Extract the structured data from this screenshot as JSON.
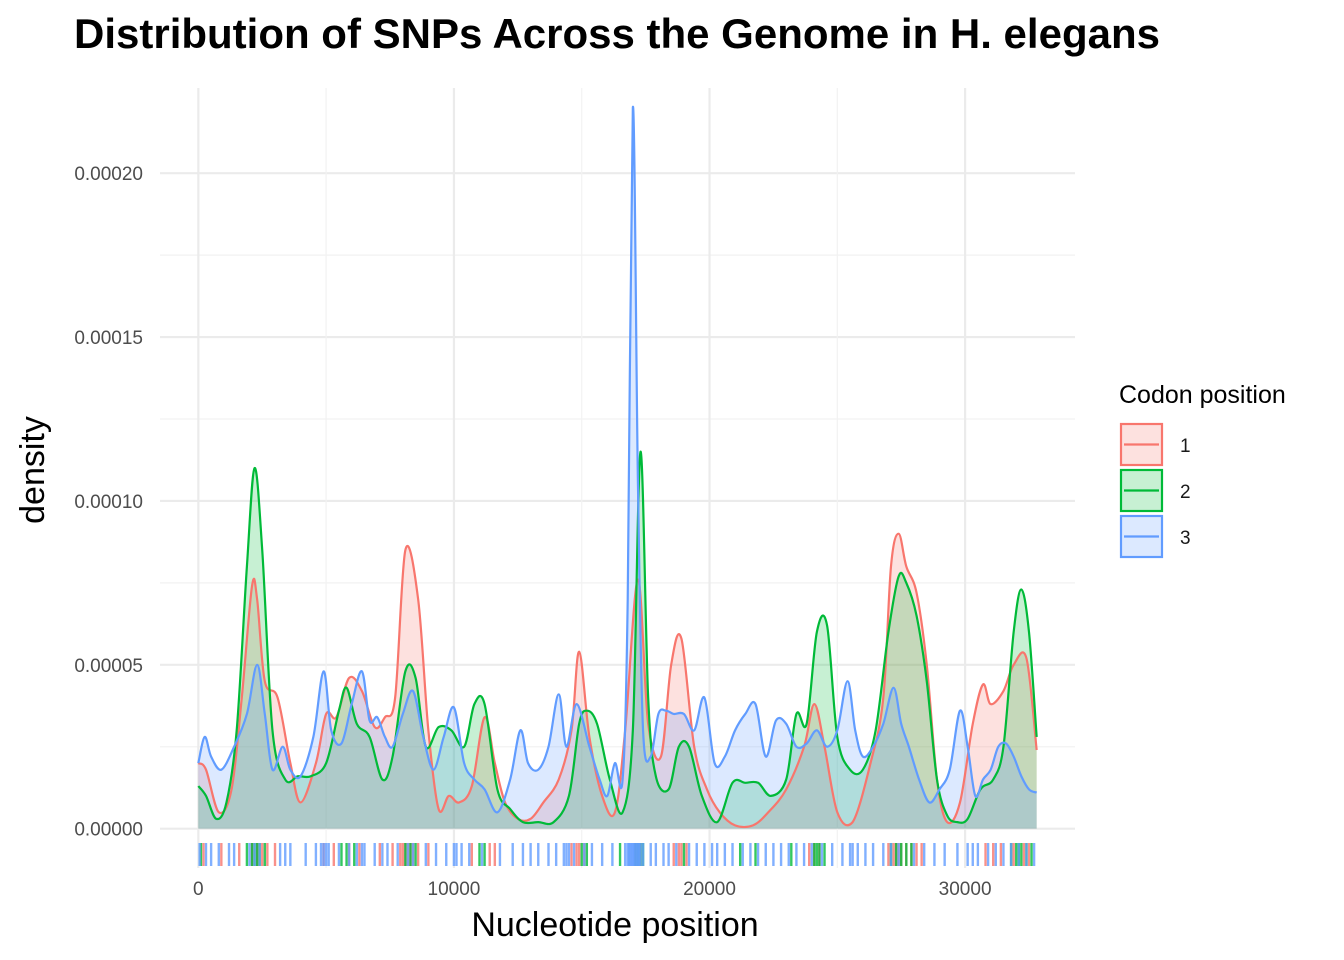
{
  "chart_data": {
    "type": "area",
    "subtype": "density",
    "title": "Distribution of SNPs Across the Genome in H. elegans",
    "xlabel": "Nucleotide position",
    "ylabel": "density",
    "xlim": [
      -1500,
      34300
    ],
    "ylim": [
      -1.2e-05,
      0.000226
    ],
    "x_ticks": [
      0,
      10000,
      20000,
      30000
    ],
    "x_tick_labels": [
      "0",
      "10000",
      "20000",
      "30000"
    ],
    "y_ticks": [
      0,
      5e-05,
      0.0001,
      0.00015,
      0.0002
    ],
    "y_tick_labels": [
      "0.00000",
      "0.00005",
      "0.00010",
      "0.00015",
      "0.00020"
    ],
    "grid": true,
    "rug": true,
    "legend": {
      "title": "Codon position",
      "position": "right"
    },
    "series": [
      {
        "name": "1",
        "color": "#F8766D",
        "x": [
          0,
          300,
          800,
          1300,
          1700,
          2100,
          2300,
          2600,
          3100,
          3600,
          4000,
          4600,
          5000,
          5400,
          5900,
          6400,
          6900,
          7300,
          7700,
          8100,
          8600,
          9000,
          9400,
          9800,
          10200,
          10700,
          11200,
          11600,
          12000,
          12500,
          13000,
          13500,
          14100,
          14600,
          14900,
          15300,
          15800,
          16300,
          16700,
          17200,
          17600,
          18100,
          18500,
          18900,
          19400,
          19900,
          20400,
          21000,
          21700,
          22300,
          23000,
          23700,
          24100,
          24500,
          25000,
          25600,
          26300,
          26800,
          27100,
          27400,
          27700,
          28100,
          28500,
          28900,
          29300,
          29800,
          30300,
          30700,
          31000,
          31500,
          31900,
          32400,
          32800
        ],
        "y": [
          2e-05,
          1.8e-05,
          5e-06,
          1.2e-05,
          4e-05,
          7.4e-05,
          7e-05,
          4.5e-05,
          4e-05,
          2e-05,
          8e-06,
          2e-05,
          3.5e-05,
          3.4e-05,
          4.6e-05,
          4.2e-05,
          3.1e-05,
          3.4e-05,
          4e-05,
          8.5e-05,
          7e-05,
          3e-05,
          6e-06,
          1e-05,
          8e-06,
          1.3e-05,
          3.4e-05,
          2e-05,
          8e-06,
          3e-06,
          3e-06,
          8e-06,
          1.5e-05,
          3e-05,
          5.4e-05,
          2.8e-05,
          1e-05,
          5e-06,
          3e-05,
          7.6e-05,
          3.2e-05,
          2.2e-05,
          5e-05,
          5.8e-05,
          2.5e-05,
          1.2e-05,
          5e-06,
          1e-06,
          1e-06,
          5e-06,
          1.2e-05,
          2.5e-05,
          3.8e-05,
          2.5e-05,
          5e-06,
          2e-06,
          2e-05,
          4e-05,
          8e-05,
          9e-05,
          8e-05,
          7.2e-05,
          5e-05,
          1.5e-05,
          2e-06,
          8e-06,
          3.2e-05,
          4.4e-05,
          3.8e-05,
          4.2e-05,
          5e-05,
          5.2e-05,
          2.4e-05
        ]
      },
      {
        "name": "2",
        "color": "#00BA38",
        "x": [
          0,
          300,
          700,
          1100,
          1500,
          1900,
          2200,
          2500,
          2900,
          3400,
          3900,
          4400,
          5000,
          5500,
          5800,
          6200,
          6700,
          7200,
          7600,
          8100,
          8500,
          8900,
          9400,
          9900,
          10400,
          10800,
          11200,
          11700,
          12200,
          12700,
          13300,
          13900,
          14500,
          14900,
          15200,
          15600,
          16100,
          16600,
          17000,
          17300,
          17600,
          17900,
          18400,
          18800,
          19200,
          19700,
          20300,
          20900,
          21400,
          21900,
          22400,
          23000,
          23400,
          23800,
          24200,
          24600,
          25000,
          25500,
          26000,
          26500,
          27000,
          27400,
          27700,
          28100,
          28500,
          28900,
          29300,
          29700,
          30100,
          30600,
          31100,
          31500,
          31900,
          32200,
          32500,
          32800
        ],
        "y": [
          1.3e-05,
          1e-05,
          3e-06,
          8e-06,
          3e-05,
          8e-05,
          0.00011,
          8.5e-05,
          3e-05,
          1.5e-05,
          1.6e-05,
          1.6e-05,
          2e-05,
          3.6e-05,
          4.3e-05,
          3.2e-05,
          2.8e-05,
          1.5e-05,
          2.2e-05,
          4.8e-05,
          4.6e-05,
          2.5e-05,
          3.1e-05,
          3e-05,
          2.5e-05,
          3.8e-05,
          3.8e-05,
          1.2e-05,
          6e-06,
          2e-06,
          2e-06,
          2e-06,
          1e-05,
          3.2e-05,
          3.6e-05,
          3.2e-05,
          1.5e-05,
          5e-06,
          3e-05,
          0.000115,
          4e-05,
          1.6e-05,
          1.2e-05,
          2.5e-05,
          2.5e-05,
          1e-05,
          2e-06,
          1.4e-05,
          1.4e-05,
          1.4e-05,
          1e-05,
          1.5e-05,
          3.5e-05,
          3.2e-05,
          6e-05,
          6.2e-05,
          2.8e-05,
          1.8e-05,
          1.8e-05,
          3e-05,
          6e-05,
          7.7e-05,
          7.5e-05,
          6.5e-05,
          4.5e-05,
          1.5e-05,
          4e-06,
          2e-06,
          3e-06,
          1.2e-05,
          1.5e-05,
          2.5e-05,
          6e-05,
          7.3e-05,
          6e-05,
          2.8e-05
        ]
      },
      {
        "name": "3",
        "color": "#619CFF",
        "x": [
          0,
          250,
          500,
          900,
          1400,
          1900,
          2300,
          2600,
          2900,
          3300,
          3600,
          4000,
          4500,
          4900,
          5200,
          5600,
          6000,
          6400,
          6700,
          7000,
          7300,
          7600,
          8000,
          8400,
          8800,
          9200,
          9600,
          10000,
          10400,
          10800,
          11200,
          11700,
          12200,
          12600,
          12900,
          13300,
          13700,
          14100,
          14400,
          14800,
          15300,
          15700,
          16000,
          16300,
          16600,
          16800,
          17000,
          17200,
          17400,
          17700,
          18000,
          18300,
          18600,
          19000,
          19400,
          19800,
          20200,
          20600,
          21000,
          21400,
          21800,
          22200,
          22600,
          23000,
          23400,
          23800,
          24200,
          24600,
          25000,
          25400,
          25700,
          26000,
          26400,
          26800,
          27200,
          27500,
          27800,
          28200,
          28600,
          29000,
          29400,
          29800,
          30100,
          30400,
          30700,
          31000,
          31300,
          31600,
          31900,
          32200,
          32500,
          32800
        ],
        "y": [
          2e-05,
          2.8e-05,
          2.2e-05,
          1.8e-05,
          2.5e-05,
          3.5e-05,
          5e-05,
          3.5e-05,
          1.8e-05,
          2.5e-05,
          1.8e-05,
          1.6e-05,
          2.8e-05,
          4.8e-05,
          3e-05,
          2.6e-05,
          3.8e-05,
          4.8e-05,
          3.3e-05,
          3.4e-05,
          2.8e-05,
          2.5e-05,
          3.5e-05,
          4.2e-05,
          2.8e-05,
          1.8e-05,
          2.8e-05,
          3.7e-05,
          2e-05,
          1.5e-05,
          1.2e-05,
          5e-06,
          1.5e-05,
          3e-05,
          2e-05,
          1.8e-05,
          2.5e-05,
          4.1e-05,
          2.5e-05,
          3.8e-05,
          2.5e-05,
          1.5e-05,
          1e-05,
          2e-05,
          1.5e-05,
          7e-05,
          0.00022,
          0.000105,
          3e-05,
          2.2e-05,
          3.5e-05,
          3.6e-05,
          3.5e-05,
          3.5e-05,
          3e-05,
          4e-05,
          2e-05,
          2.2e-05,
          3e-05,
          3.5e-05,
          3.8e-05,
          2.2e-05,
          3.3e-05,
          3.2e-05,
          2.5e-05,
          2.6e-05,
          3e-05,
          2.5e-05,
          3e-05,
          4.5e-05,
          3e-05,
          2.2e-05,
          2.5e-05,
          3.2e-05,
          4.3e-05,
          3.2e-05,
          2.5e-05,
          1.5e-05,
          8e-06,
          1.2e-05,
          1.8e-05,
          3.6e-05,
          2.5e-05,
          1e-05,
          1.5e-05,
          1.8e-05,
          2.5e-05,
          2.6e-05,
          2.2e-05,
          1.6e-05,
          1.2e-05,
          1.1e-05
        ]
      }
    ],
    "rug_data": [
      {
        "name": "1",
        "positions": [
          200,
          900,
          1600,
          2100,
          2300,
          2500,
          2700,
          3000,
          4900,
          5300,
          5900,
          6300,
          7100,
          7600,
          7900,
          8000,
          8100,
          8200,
          8300,
          8400,
          8600,
          9000,
          10700,
          11400,
          11600,
          14600,
          14800,
          14900,
          15100,
          17100,
          17200,
          17300,
          18600,
          18800,
          18900,
          19100,
          23900,
          24100,
          24300,
          27000,
          27200,
          27300,
          27400,
          27500,
          27700,
          27900,
          28100,
          28300,
          30800,
          31100,
          31400,
          31900,
          32100,
          32300,
          32500
        ]
      },
      {
        "name": "2",
        "positions": [
          100,
          1900,
          2100,
          2200,
          2300,
          2400,
          2600,
          5600,
          5800,
          6100,
          8100,
          8300,
          8500,
          11000,
          11200,
          15000,
          15200,
          16500,
          17100,
          17200,
          17300,
          17400,
          19000,
          21200,
          21800,
          23200,
          24100,
          24200,
          24300,
          24500,
          27100,
          27300,
          27500,
          27700,
          27900,
          31800,
          32000,
          32100,
          32200,
          32400,
          32600
        ]
      },
      {
        "name": "3",
        "positions": [
          50,
          300,
          500,
          800,
          1200,
          1400,
          2000,
          2200,
          2400,
          3200,
          3400,
          3600,
          4200,
          4600,
          4800,
          4900,
          5000,
          5100,
          5500,
          5900,
          6200,
          6400,
          6500,
          6900,
          7200,
          7400,
          7800,
          8200,
          8400,
          8900,
          9300,
          9700,
          10000,
          10100,
          10300,
          10600,
          11100,
          11800,
          12300,
          12700,
          13000,
          13300,
          13700,
          14000,
          14300,
          14400,
          14500,
          14700,
          15100,
          15400,
          15800,
          16200,
          16700,
          16800,
          16850,
          16900,
          16950,
          17000,
          17050,
          17100,
          17150,
          17200,
          17250,
          17300,
          17400,
          17700,
          17900,
          18200,
          18400,
          18700,
          19200,
          19500,
          19800,
          20100,
          20300,
          20600,
          20900,
          21300,
          21600,
          21900,
          22200,
          22500,
          22800,
          23100,
          23400,
          23700,
          24000,
          24400,
          24800,
          25200,
          25500,
          25600,
          25800,
          26100,
          26400,
          26800,
          27100,
          27400,
          28000,
          28400,
          28800,
          29200,
          29700,
          30100,
          30300,
          30500,
          30900,
          31200,
          31500,
          31800,
          32100,
          32400,
          32700
        ]
      }
    ]
  }
}
